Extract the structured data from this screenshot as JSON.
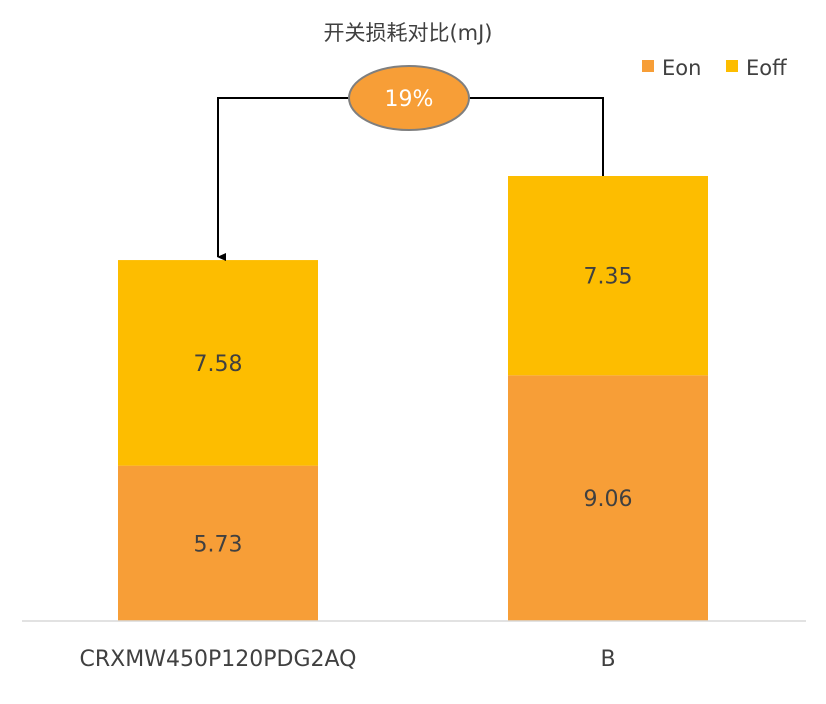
{
  "chart_data": {
    "type": "bar",
    "stacked": true,
    "title": "开关损耗对比(mJ)",
    "categories": [
      "CRXMW450P120PDG2AQ",
      "B"
    ],
    "series": [
      {
        "name": "Eon",
        "values": [
          5.73,
          9.06
        ],
        "color": "#F79E37"
      },
      {
        "name": "Eoff",
        "values": [
          7.58,
          7.35
        ],
        "color": "#FDBD00"
      }
    ],
    "data_labels": [
      [
        "5.73",
        "9.06"
      ],
      [
        "7.58",
        "7.35"
      ]
    ],
    "legend_position": "top-right",
    "grid": false,
    "ylim": [
      0,
      16.41
    ],
    "annotation": {
      "text": "19%",
      "fill": "#F79E37",
      "stroke": "#7F7F7F",
      "arrow_from": "B",
      "arrow_to": "CRXMW450P120PDG2AQ"
    }
  }
}
